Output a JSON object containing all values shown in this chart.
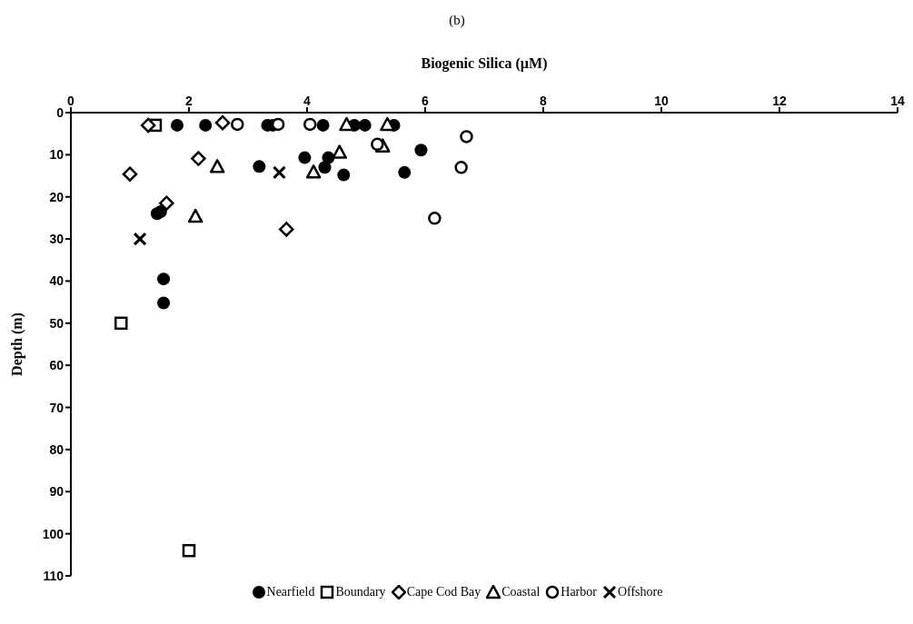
{
  "chart_data": {
    "type": "scatter",
    "title": "(b)",
    "xlabel": "Biogenic Silica (µM)",
    "ylabel": "Depth (m)",
    "xlim": [
      0,
      14
    ],
    "xticks": [
      0,
      2,
      4,
      6,
      8,
      10,
      12,
      14
    ],
    "ylim": [
      110,
      0
    ],
    "yticks": [
      0,
      10,
      20,
      30,
      40,
      50,
      60,
      70,
      80,
      90,
      100,
      110
    ],
    "grid": false,
    "legend": "bottom",
    "series": [
      {
        "name": "Nearfield",
        "color": "#000000",
        "marker": "circle",
        "x": [
          1.8,
          2.28,
          3.33,
          3.42,
          4.27,
          4.8,
          4.98,
          5.47,
          3.96,
          4.36,
          3.19,
          4.3,
          4.62,
          5.65,
          5.93,
          1.46,
          1.52,
          1.57,
          1.57
        ],
        "values": [
          3,
          3,
          3,
          3,
          3,
          3,
          3,
          3,
          10.7,
          10.7,
          12.8,
          13,
          14.8,
          14.2,
          8.9,
          24,
          23.5,
          39.5,
          45.2
        ]
      },
      {
        "name": "Boundary",
        "color": "#000000",
        "marker": "square",
        "x": [
          1.43,
          0.85,
          2.0
        ],
        "values": [
          3,
          50,
          104
        ]
      },
      {
        "name": "Cape Cod Bay",
        "color": "#000000",
        "marker": "diamond",
        "x": [
          1.31,
          2.57,
          2.16,
          1.0,
          1.62,
          3.65
        ],
        "values": [
          3,
          2.4,
          10.9,
          14.6,
          21.5,
          27.7
        ]
      },
      {
        "name": "Coastal",
        "color": "#000000",
        "marker": "triangle",
        "x": [
          2.48,
          2.11,
          4.11,
          4.55,
          4.67,
          5.36,
          5.28
        ],
        "values": [
          12.8,
          24.6,
          14.1,
          9.4,
          2.8,
          2.8,
          7.9
        ]
      },
      {
        "name": "Harbor",
        "color": "#000000",
        "marker": "circle",
        "x": [
          2.82,
          3.51,
          4.05,
          5.19,
          6.7,
          6.61,
          6.16
        ],
        "values": [
          2.8,
          2.8,
          2.8,
          7.5,
          5.7,
          13,
          25.1
        ]
      },
      {
        "name": "Offshore",
        "color": "#000000",
        "marker": "cross",
        "x": [
          3.53,
          1.17
        ],
        "values": [
          14.2,
          30
        ]
      }
    ]
  }
}
